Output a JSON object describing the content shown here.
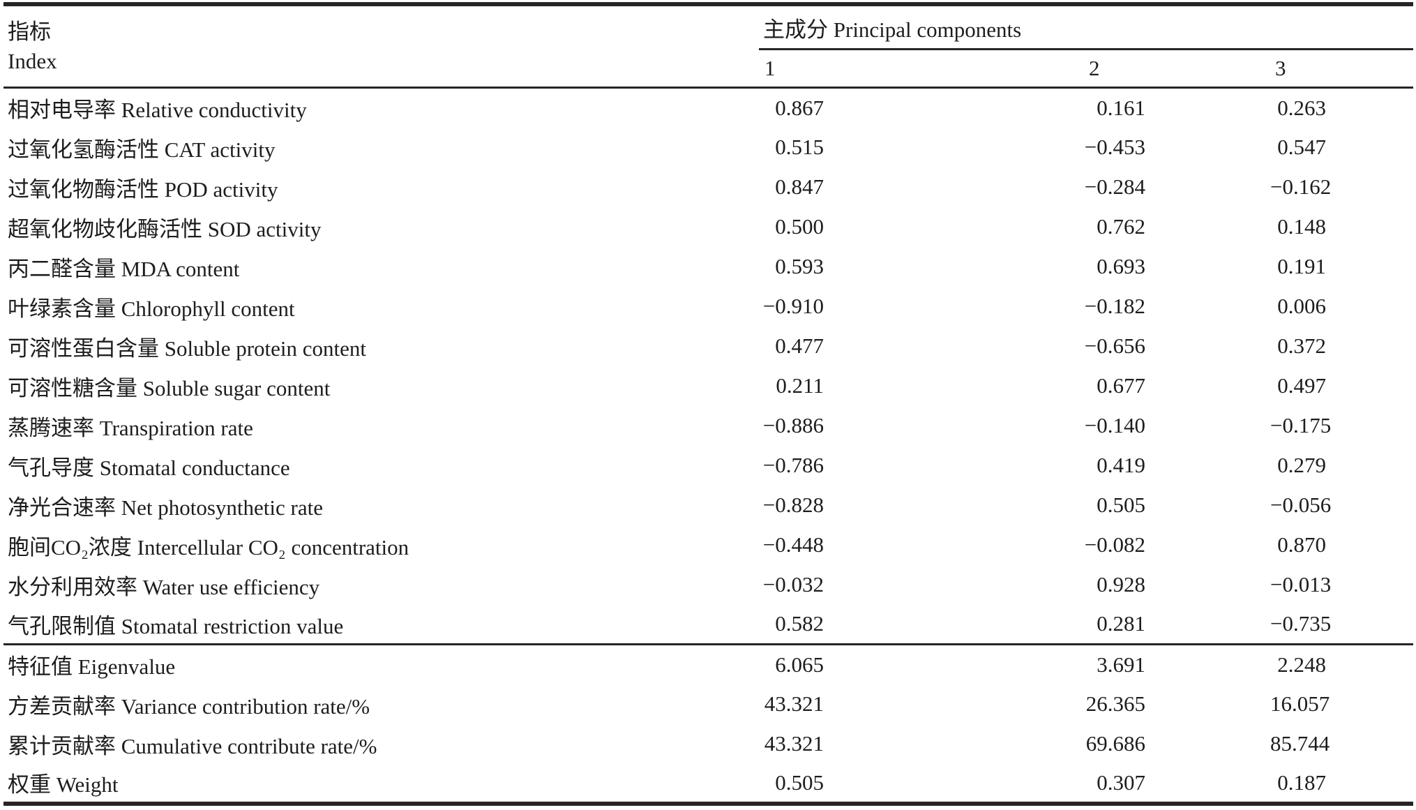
{
  "table": {
    "index_header": {
      "zh": "指标",
      "en": "Index"
    },
    "group_header": "主成分 Principal components",
    "component_headers": [
      "1",
      "2",
      "3"
    ],
    "rows": [
      {
        "label": "相对电导率 Relative conductivity",
        "values": [
          "0.867",
          "0.161",
          "0.263"
        ]
      },
      {
        "label": "过氧化氢酶活性 CAT activity",
        "values": [
          "0.515",
          "−0.453",
          "0.547"
        ]
      },
      {
        "label": "过氧化物酶活性 POD activity",
        "values": [
          "0.847",
          "−0.284",
          "−0.162"
        ]
      },
      {
        "label": "超氧化物歧化酶活性 SOD activity",
        "values": [
          "0.500",
          "0.762",
          "0.148"
        ]
      },
      {
        "label": "丙二醛含量 MDA content",
        "values": [
          "0.593",
          "0.693",
          "0.191"
        ]
      },
      {
        "label": "叶绿素含量 Chlorophyll content",
        "values": [
          "−0.910",
          "−0.182",
          "0.006"
        ]
      },
      {
        "label": "可溶性蛋白含量 Soluble protein content",
        "values": [
          "0.477",
          "−0.656",
          "0.372"
        ]
      },
      {
        "label": "可溶性糖含量 Soluble sugar content",
        "values": [
          "0.211",
          "0.677",
          "0.497"
        ]
      },
      {
        "label": "蒸腾速率 Transpiration rate",
        "values": [
          "−0.886",
          "−0.140",
          "−0.175"
        ]
      },
      {
        "label": "气孔导度 Stomatal conductance",
        "values": [
          "−0.786",
          "0.419",
          "0.279"
        ]
      },
      {
        "label": "净光合速率 Net photosynthetic rate",
        "values": [
          "−0.828",
          "0.505",
          "−0.056"
        ]
      },
      {
        "label": "胞间CO₂浓度 Intercellular CO₂ concentration",
        "values": [
          "−0.448",
          "−0.082",
          "0.870"
        ]
      },
      {
        "label": "水分利用效率 Water use efficiency",
        "values": [
          "−0.032",
          "0.928",
          "−0.013"
        ]
      },
      {
        "label": "气孔限制值 Stomatal restriction value",
        "values": [
          "0.582",
          "0.281",
          "−0.735"
        ]
      }
    ],
    "summary_rows": [
      {
        "label": "特征值 Eigenvalue",
        "values": [
          "6.065",
          "3.691",
          "2.248"
        ]
      },
      {
        "label": "方差贡献率 Variance contribution rate/%",
        "values": [
          "43.321",
          "26.365",
          "16.057"
        ]
      },
      {
        "label": "累计贡献率 Cumulative contribute rate/%",
        "values": [
          "43.321",
          "69.686",
          "85.744"
        ]
      },
      {
        "label": "权重 Weight",
        "values": [
          "0.505",
          "0.307",
          "0.187"
        ]
      }
    ]
  }
}
